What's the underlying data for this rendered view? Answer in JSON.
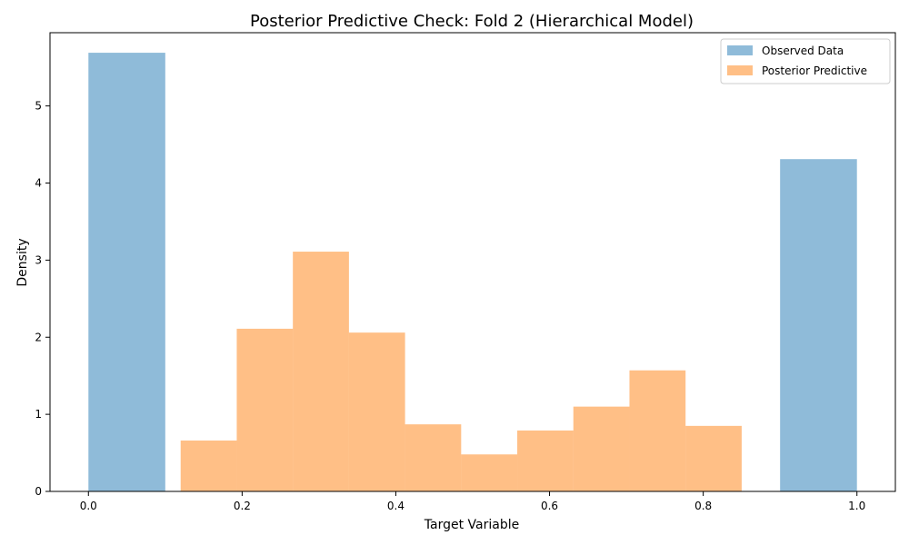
{
  "chart_data": {
    "type": "histogram",
    "title": "Posterior Predictive Check: Fold 2 (Hierarchical Model)",
    "xlabel": "Target Variable",
    "ylabel": "Density",
    "xlim": [
      -0.05,
      1.05
    ],
    "ylim": [
      0,
      5.95
    ],
    "xticks": [
      0.0,
      0.2,
      0.4,
      0.6,
      0.8,
      1.0
    ],
    "xtick_labels": [
      "0.0",
      "0.2",
      "0.4",
      "0.6",
      "0.8",
      "1.0"
    ],
    "yticks": [
      0,
      1,
      2,
      3,
      4,
      5
    ],
    "ytick_labels": [
      "0",
      "1",
      "2",
      "3",
      "4",
      "5"
    ],
    "grid": false,
    "legend_position": "top-right",
    "series": [
      {
        "name": "Observed Data",
        "color": "#1f77b4",
        "opacity": 0.5,
        "bins": [
          {
            "x0": 0.0,
            "x1": 0.1,
            "value": 5.69
          },
          {
            "x0": 0.9,
            "x1": 1.0,
            "value": 4.31
          }
        ]
      },
      {
        "name": "Posterior Predictive",
        "color": "#ff7f0e",
        "opacity": 0.5,
        "bins": [
          {
            "x0": 0.12,
            "x1": 0.193,
            "value": 0.66
          },
          {
            "x0": 0.193,
            "x1": 0.266,
            "value": 2.11
          },
          {
            "x0": 0.266,
            "x1": 0.339,
            "value": 3.11
          },
          {
            "x0": 0.339,
            "x1": 0.412,
            "value": 2.06
          },
          {
            "x0": 0.412,
            "x1": 0.485,
            "value": 0.87
          },
          {
            "x0": 0.485,
            "x1": 0.558,
            "value": 0.48
          },
          {
            "x0": 0.558,
            "x1": 0.631,
            "value": 0.79
          },
          {
            "x0": 0.631,
            "x1": 0.704,
            "value": 1.1
          },
          {
            "x0": 0.704,
            "x1": 0.777,
            "value": 1.57
          },
          {
            "x0": 0.777,
            "x1": 0.85,
            "value": 0.85
          }
        ]
      }
    ]
  }
}
